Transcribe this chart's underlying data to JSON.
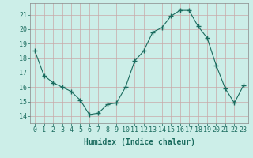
{
  "x": [
    0,
    1,
    2,
    3,
    4,
    5,
    6,
    7,
    8,
    9,
    10,
    11,
    12,
    13,
    14,
    15,
    16,
    17,
    18,
    19,
    20,
    21,
    22,
    23
  ],
  "y": [
    18.5,
    16.8,
    16.3,
    16.0,
    15.7,
    15.1,
    14.1,
    14.2,
    14.8,
    14.9,
    16.0,
    17.8,
    18.5,
    19.8,
    20.1,
    20.9,
    21.3,
    21.3,
    20.2,
    19.4,
    17.5,
    15.9,
    14.9,
    16.1
  ],
  "xlabel": "Humidex (Indice chaleur)",
  "xlim": [
    -0.5,
    23.5
  ],
  "ylim": [
    13.5,
    21.8
  ],
  "yticks": [
    14,
    15,
    16,
    17,
    18,
    19,
    20,
    21
  ],
  "xtick_labels": [
    "0",
    "1",
    "2",
    "3",
    "4",
    "5",
    "6",
    "7",
    "8",
    "9",
    "10",
    "11",
    "12",
    "13",
    "14",
    "15",
    "16",
    "17",
    "18",
    "19",
    "20",
    "21",
    "22",
    "23"
  ],
  "line_color": "#1a6b5e",
  "marker": "+",
  "marker_size": 4,
  "bg_color": "#cceee8",
  "grid_color": "#c8a8a8",
  "label_fontsize": 7,
  "tick_fontsize": 6,
  "tick_color": "#1a6b5e",
  "spine_color": "#888888"
}
